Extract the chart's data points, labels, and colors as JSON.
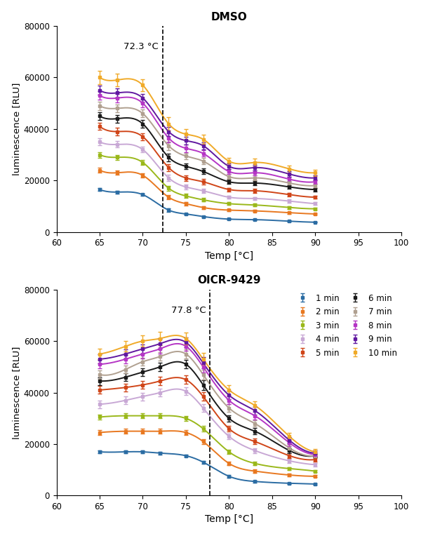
{
  "temps_dmso": [
    65,
    67,
    70,
    73,
    75,
    77,
    80,
    83,
    87,
    90
  ],
  "temps_oicr": [
    65,
    68,
    70,
    72,
    75,
    77,
    80,
    83,
    87,
    90
  ],
  "dmso": {
    "title": "DMSO",
    "vline": 72.3,
    "vline_label": "72.3 °C",
    "series": {
      "1 min": {
        "y": [
          16500,
          15500,
          14500,
          8500,
          7000,
          6000,
          5000,
          4800,
          4200,
          3800
        ],
        "err": [
          600,
          500,
          500,
          700,
          400,
          300,
          300,
          300,
          300,
          200
        ]
      },
      "2 min": {
        "y": [
          24000,
          23000,
          22000,
          13500,
          11000,
          9500,
          8500,
          8200,
          7500,
          7000
        ],
        "err": [
          900,
          800,
          800,
          900,
          700,
          500,
          400,
          400,
          400,
          300
        ]
      },
      "3 min": {
        "y": [
          30000,
          29000,
          27000,
          17000,
          14000,
          12500,
          11000,
          10500,
          9500,
          9000
        ],
        "err": [
          1100,
          1000,
          900,
          1000,
          800,
          700,
          500,
          500,
          500,
          400
        ]
      },
      "4 min": {
        "y": [
          35000,
          34000,
          32000,
          21000,
          17500,
          16000,
          13500,
          13000,
          12000,
          11000
        ],
        "err": [
          1300,
          1200,
          1100,
          1200,
          900,
          800,
          600,
          600,
          600,
          500
        ]
      },
      "5 min": {
        "y": [
          41000,
          39000,
          37000,
          25000,
          21000,
          19500,
          16500,
          16000,
          14500,
          13500
        ],
        "err": [
          1400,
          1400,
          1300,
          1400,
          1100,
          1000,
          700,
          700,
          600,
          600
        ]
      },
      "6 min": {
        "y": [
          45000,
          44000,
          42000,
          29000,
          25500,
          23500,
          19500,
          19000,
          17500,
          16500
        ],
        "err": [
          1500,
          1500,
          1400,
          1500,
          1200,
          1100,
          800,
          800,
          700,
          700
        ]
      },
      "7 min": {
        "y": [
          49000,
          48000,
          46000,
          33500,
          29500,
          27500,
          21500,
          21000,
          19000,
          18000
        ],
        "err": [
          1600,
          1600,
          1500,
          1600,
          1300,
          1200,
          900,
          900,
          800,
          800
        ]
      },
      "8 min": {
        "y": [
          53000,
          52000,
          50000,
          36500,
          32500,
          30500,
          23500,
          23000,
          20500,
          19500
        ],
        "err": [
          1700,
          1700,
          1600,
          1700,
          1400,
          1300,
          1000,
          1000,
          900,
          900
        ]
      },
      "9 min": {
        "y": [
          55000,
          54000,
          52000,
          39000,
          35500,
          33500,
          25500,
          25000,
          22500,
          21000
        ],
        "err": [
          1800,
          1800,
          1700,
          1800,
          1500,
          1400,
          1100,
          1100,
          1000,
          1000
        ]
      },
      "10 min": {
        "y": [
          60000,
          59000,
          57000,
          42000,
          38000,
          36000,
          27500,
          27000,
          24500,
          23000
        ],
        "err": [
          2500,
          2400,
          2200,
          2600,
          2000,
          1800,
          1400,
          1400,
          1300,
          1200
        ]
      }
    }
  },
  "oicr": {
    "title": "OICR-9429",
    "vline": 77.8,
    "vline_label": "77.8 °C",
    "series": {
      "1 min": {
        "y": [
          17000,
          17000,
          17000,
          16500,
          15500,
          13000,
          7500,
          5500,
          4800,
          4500
        ],
        "err": [
          500,
          500,
          500,
          600,
          500,
          600,
          500,
          400,
          300,
          200
        ]
      },
      "2 min": {
        "y": [
          24500,
          25000,
          25000,
          25000,
          24500,
          21000,
          12500,
          9500,
          8000,
          7500
        ],
        "err": [
          1000,
          1000,
          900,
          900,
          900,
          1000,
          700,
          600,
          500,
          400
        ]
      },
      "3 min": {
        "y": [
          30500,
          31000,
          31000,
          31000,
          30000,
          26000,
          17000,
          12500,
          10500,
          9500
        ],
        "err": [
          1000,
          1000,
          1000,
          1000,
          1000,
          1100,
          900,
          700,
          600,
          500
        ]
      },
      "4 min": {
        "y": [
          35500,
          37000,
          38500,
          40000,
          40500,
          34000,
          23000,
          17500,
          13500,
          12000
        ],
        "err": [
          1500,
          1500,
          1500,
          1500,
          1500,
          1600,
          1200,
          1000,
          800,
          600
        ]
      },
      "5 min": {
        "y": [
          41000,
          42000,
          43000,
          44500,
          45000,
          38500,
          26000,
          21000,
          15500,
          14000
        ],
        "err": [
          1500,
          1500,
          1500,
          1600,
          1600,
          1700,
          1200,
          1100,
          900,
          700
        ]
      },
      "6 min": {
        "y": [
          44500,
          46000,
          48000,
          50000,
          51000,
          43000,
          30000,
          25000,
          17500,
          15500
        ],
        "err": [
          1500,
          1500,
          1500,
          1600,
          1700,
          1900,
          1300,
          1200,
          1000,
          800
        ]
      },
      "7 min": {
        "y": [
          47000,
          49000,
          52000,
          54000,
          55000,
          47000,
          34000,
          28000,
          18500,
          15500
        ],
        "err": [
          1600,
          1600,
          1600,
          1700,
          1800,
          2000,
          1400,
          1300,
          1100,
          900
        ]
      },
      "8 min": {
        "y": [
          51000,
          53000,
          55000,
          57000,
          58000,
          50000,
          37000,
          31000,
          20500,
          16000
        ],
        "err": [
          1700,
          1700,
          1700,
          1800,
          1900,
          2100,
          1500,
          1400,
          1200,
          1000
        ]
      },
      "9 min": {
        "y": [
          53000,
          55000,
          57000,
          59000,
          59500,
          51500,
          39000,
          33000,
          21500,
          16500
        ],
        "err": [
          1800,
          1800,
          1800,
          1900,
          2000,
          2200,
          1600,
          1500,
          1300,
          1100
        ]
      },
      "10 min": {
        "y": [
          55000,
          58000,
          60000,
          61000,
          61000,
          53000,
          41000,
          35000,
          23000,
          17000
        ],
        "err": [
          2000,
          2000,
          2200,
          2500,
          2300,
          2400,
          1800,
          1600,
          1400,
          1200
        ]
      }
    }
  },
  "colors": {
    "1 min": "#2b6ca3",
    "2 min": "#e87820",
    "3 min": "#9ab81a",
    "4 min": "#c8a8d5",
    "5 min": "#d04518",
    "6 min": "#1a1a1a",
    "7 min": "#b0a090",
    "8 min": "#b535c5",
    "9 min": "#6018a0",
    "10 min": "#f0aa28"
  },
  "legend_order": [
    "1 min",
    "2 min",
    "3 min",
    "4 min",
    "5 min",
    "6 min",
    "7 min",
    "8 min",
    "9 min",
    "10 min"
  ],
  "ylim": [
    0,
    80000
  ],
  "xlim": [
    60,
    100
  ],
  "xlabel": "Temp [°C]",
  "ylabel": "luminescence [RLU]"
}
